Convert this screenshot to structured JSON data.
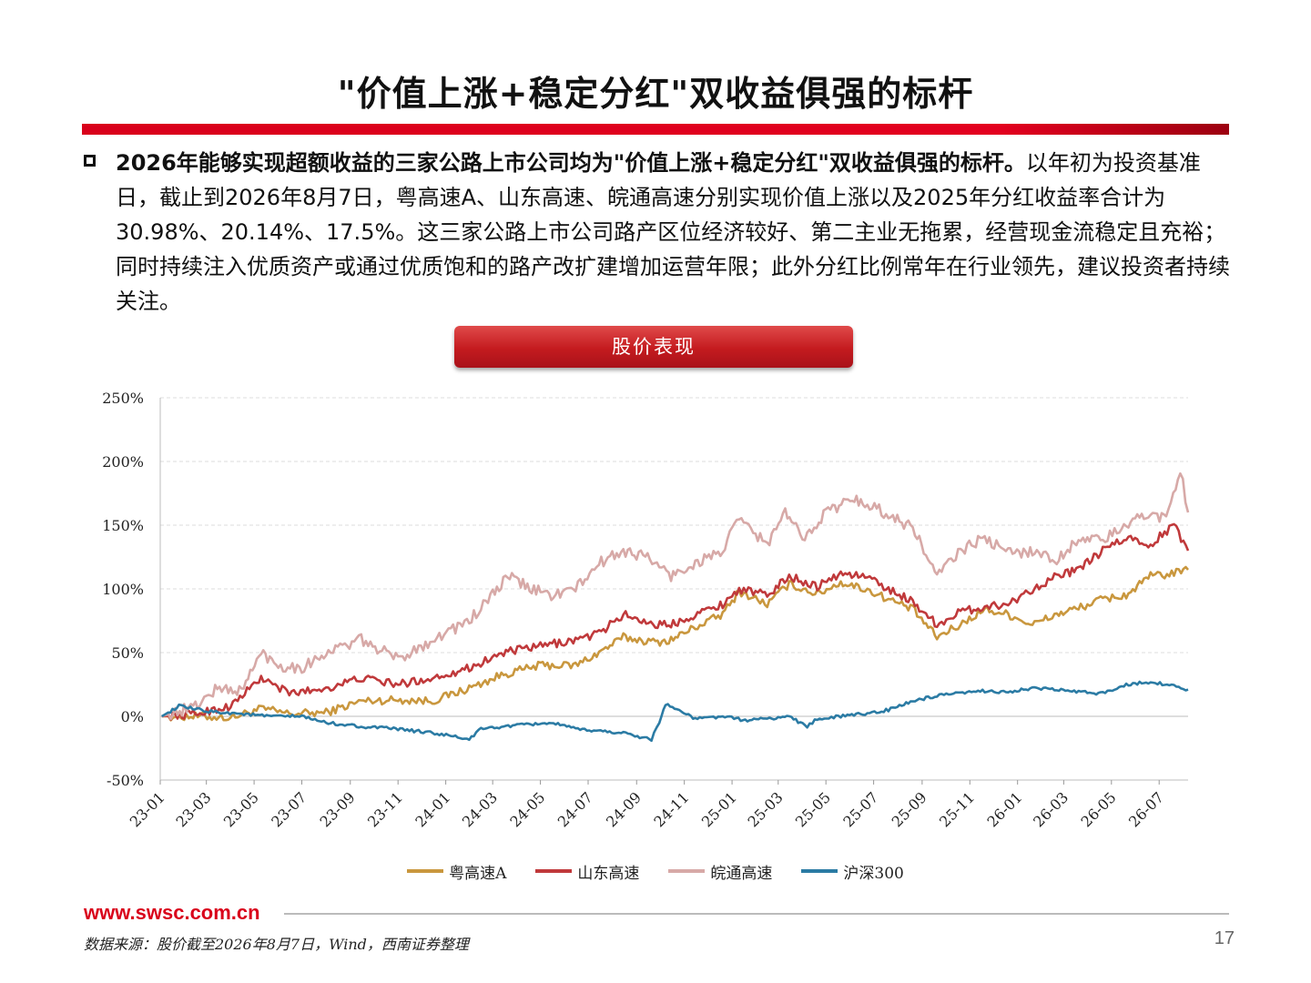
{
  "slide": {
    "title": "\"价值上涨+稳定分红\"双收益俱强的标杆",
    "paragraph_bold": "2026年能够实现超额收益的三家公路上市公司均为\"价值上涨+稳定分红\"双收益俱强的标杆。",
    "paragraph_rest": "以年初为投资基准日，截止到2026年8月7日，粤高速A、山东高速、皖通高速分别实现价值上涨以及2025年分红收益率合计为30.98%、20.14%、17.5%。这三家公路上市公司路产区位经济较好、第二主业无拖累，经营现金流稳定且充裕；同时持续注入优质资产或通过优质饱和的路产改扩建增加运营年限；此外分红比例常年在行业领先，建议投资者持续关注。",
    "banner": "股价表现",
    "website": "www.swsc.com.cn",
    "source": "数据来源：股价截至2026年8月7日，Wind，西南证券整理",
    "page_number": "17"
  },
  "chart_data": {
    "type": "line",
    "title": "股价表现",
    "xlabel": "",
    "ylabel": "",
    "ylim": [
      -50,
      250
    ],
    "yticks": [
      "250%",
      "200%",
      "150%",
      "100%",
      "50%",
      "0%",
      "-50%"
    ],
    "ytick_values": [
      250,
      200,
      150,
      100,
      50,
      0,
      -50
    ],
    "x_ticks": [
      "23-01",
      "23-03",
      "23-05",
      "23-07",
      "23-09",
      "23-11",
      "24-01",
      "24-03",
      "24-05",
      "24-07",
      "24-09",
      "24-11",
      "25-01",
      "25-03",
      "25-05",
      "25-07",
      "25-09",
      "25-11",
      "26-01",
      "26-03",
      "26-05",
      "26-07"
    ],
    "x_range": [
      "2023-01-01",
      "2026-08-07"
    ],
    "grid": true,
    "legend_position": "bottom",
    "series": [
      {
        "name": "粤高速A",
        "color": "#c9973e",
        "x": [
          "2023-01-03",
          "2023-02-15",
          "2023-04-01",
          "2023-05-10",
          "2023-06-15",
          "2023-08-01",
          "2023-09-15",
          "2023-11-01",
          "2023-12-15",
          "2024-01-31",
          "2024-03-15",
          "2024-05-01",
          "2024-06-15",
          "2024-07-15",
          "2024-08-15",
          "2024-09-25",
          "2024-10-15",
          "2024-11-15",
          "2024-12-20",
          "2025-01-10",
          "2025-02-15",
          "2025-03-15",
          "2025-04-20",
          "2025-05-20",
          "2025-06-20",
          "2025-07-20",
          "2025-08-20",
          "2025-09-20",
          "2025-10-20",
          "2025-11-20",
          "2025-12-20",
          "2026-01-20",
          "2026-02-20",
          "2026-03-20",
          "2026-04-20",
          "2026-05-20",
          "2026-06-20",
          "2026-07-20",
          "2026-08-07"
        ],
        "values": [
          0,
          0,
          -1,
          6,
          2,
          3,
          12,
          13,
          12,
          22,
          33,
          40,
          40,
          50,
          62,
          58,
          60,
          70,
          80,
          98,
          88,
          104,
          96,
          105,
          100,
          92,
          84,
          62,
          72,
          84,
          80,
          72,
          80,
          85,
          92,
          95,
          110,
          112,
          115
        ]
      },
      {
        "name": "山东高速",
        "color": "#c0393b",
        "x": [
          "2023-01-03",
          "2023-02-15",
          "2023-04-01",
          "2023-05-10",
          "2023-06-15",
          "2023-08-01",
          "2023-09-15",
          "2023-11-01",
          "2023-12-15",
          "2024-01-31",
          "2024-03-15",
          "2024-05-01",
          "2024-06-15",
          "2024-07-15",
          "2024-08-15",
          "2024-09-25",
          "2024-10-15",
          "2024-11-15",
          "2024-12-20",
          "2025-01-10",
          "2025-02-15",
          "2025-03-15",
          "2025-04-20",
          "2025-05-20",
          "2025-06-20",
          "2025-07-20",
          "2025-08-20",
          "2025-09-20",
          "2025-10-20",
          "2025-11-20",
          "2025-12-20",
          "2026-01-20",
          "2026-02-20",
          "2026-03-20",
          "2026-04-20",
          "2026-05-20",
          "2026-06-20",
          "2026-07-20",
          "2026-08-07"
        ],
        "values": [
          0,
          2,
          8,
          30,
          18,
          22,
          30,
          25,
          30,
          38,
          50,
          55,
          60,
          65,
          80,
          72,
          72,
          80,
          88,
          100,
          95,
          110,
          102,
          112,
          110,
          100,
          90,
          72,
          82,
          86,
          88,
          100,
          110,
          115,
          130,
          140,
          135,
          150,
          130
        ]
      },
      {
        "name": "皖通高速",
        "color": "#d7a9a7",
        "x": [
          "2023-01-03",
          "2023-02-15",
          "2023-03-15",
          "2023-04-15",
          "2023-05-10",
          "2023-06-01",
          "2023-07-01",
          "2023-08-01",
          "2023-09-15",
          "2023-11-01",
          "2023-12-15",
          "2024-01-31",
          "2024-03-01",
          "2024-03-20",
          "2024-04-20",
          "2024-05-15",
          "2024-06-15",
          "2024-07-15",
          "2024-08-15",
          "2024-09-15",
          "2024-10-15",
          "2024-11-15",
          "2024-12-20",
          "2025-01-10",
          "2025-02-15",
          "2025-03-10",
          "2025-04-01",
          "2025-05-01",
          "2025-06-01",
          "2025-06-20",
          "2025-07-20",
          "2025-08-20",
          "2025-09-20",
          "2025-10-20",
          "2025-11-20",
          "2025-12-20",
          "2026-01-20",
          "2026-02-20",
          "2026-03-20",
          "2026-04-20",
          "2026-05-20",
          "2026-06-20",
          "2026-07-10",
          "2026-07-28",
          "2026-08-07"
        ],
        "values": [
          0,
          8,
          22,
          20,
          50,
          40,
          38,
          50,
          60,
          45,
          60,
          75,
          95,
          110,
          100,
          95,
          100,
          120,
          130,
          125,
          110,
          120,
          130,
          155,
          135,
          160,
          140,
          160,
          170,
          168,
          158,
          148,
          110,
          130,
          140,
          128,
          130,
          122,
          140,
          138,
          150,
          160,
          155,
          195,
          160
        ]
      },
      {
        "name": "沪深300",
        "color": "#2b7ba4",
        "x": [
          "2023-01-03",
          "2023-01-25",
          "2023-03-01",
          "2023-04-15",
          "2023-05-20",
          "2023-07-01",
          "2023-08-01",
          "2023-09-15",
          "2023-11-01",
          "2023-12-15",
          "2024-01-31",
          "2024-02-15",
          "2024-03-15",
          "2024-05-15",
          "2024-06-15",
          "2024-08-15",
          "2024-09-20",
          "2024-09-30",
          "2024-10-08",
          "2024-11-15",
          "2024-12-20",
          "2025-01-15",
          "2025-02-15",
          "2025-03-15",
          "2025-04-07",
          "2025-04-20",
          "2025-05-20",
          "2025-06-20",
          "2025-07-20",
          "2025-08-20",
          "2025-09-20",
          "2025-10-20",
          "2025-11-20",
          "2025-12-20",
          "2026-01-20",
          "2026-02-20",
          "2026-03-20",
          "2026-04-20",
          "2026-05-20",
          "2026-06-20",
          "2026-07-20",
          "2026-08-07"
        ],
        "values": [
          0,
          8,
          4,
          2,
          0,
          0,
          -5,
          -8,
          -10,
          -13,
          -18,
          -10,
          -8,
          -5,
          -10,
          -13,
          -18,
          -5,
          10,
          -2,
          0,
          -3,
          -2,
          0,
          -8,
          -2,
          0,
          2,
          5,
          12,
          16,
          18,
          20,
          19,
          22,
          21,
          19,
          18,
          25,
          27,
          24,
          21
        ]
      }
    ]
  }
}
